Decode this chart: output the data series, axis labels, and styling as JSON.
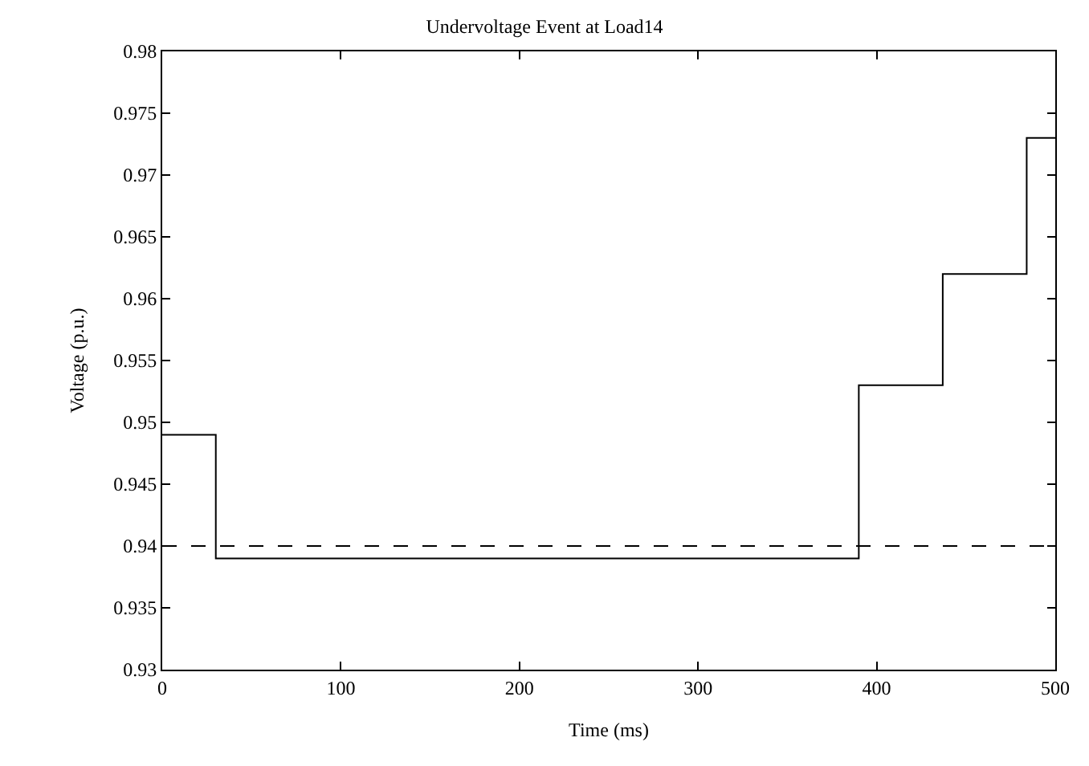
{
  "chart_data": {
    "type": "step",
    "title": "Undervoltage Event at Load14",
    "xlabel": "Time (ms)",
    "ylabel": "Voltage (p.u.)",
    "x": [
      0,
      30,
      390,
      437,
      484,
      500
    ],
    "series": [
      {
        "color": "#000000",
        "values": [
          0.949,
          0.939,
          0.953,
          0.962,
          0.973,
          0.973
        ]
      }
    ],
    "xlim": [
      0,
      500
    ],
    "xticks": [
      0,
      100,
      200,
      300,
      400,
      500
    ],
    "ylim": [
      0.93,
      0.98
    ],
    "yticks": [
      0.93,
      0.935,
      0.94,
      0.945,
      0.95,
      0.955,
      0.96,
      0.965,
      0.97,
      0.975,
      0.98
    ],
    "ref_lines": [
      {
        "axis": "y",
        "value": 0.94,
        "line_style": "dashed",
        "color": "#000000"
      }
    ],
    "marker": "none",
    "line_style": "solid"
  }
}
